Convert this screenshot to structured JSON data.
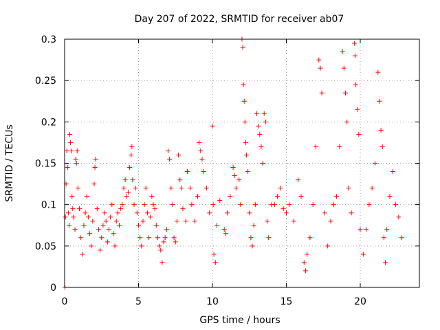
{
  "chart_data": {
    "type": "scatter",
    "title": "Day 207 of 2022, SRMTID for receiver ab07",
    "xlabel": "GPS time / hours",
    "ylabel": "SRMTID / TECUs",
    "xlim": [
      0,
      24
    ],
    "ylim": [
      0,
      0.3
    ],
    "xticks": [
      0,
      5,
      10,
      15,
      20
    ],
    "xtick_labels": [
      "0",
      "5",
      "10",
      "15",
      "20"
    ],
    "yticks": [
      0,
      0.05,
      0.1,
      0.15,
      0.2,
      0.25,
      0.3
    ],
    "ytick_labels": [
      "0",
      "0.05",
      "0.1",
      "0.15",
      "0.2",
      "0.25",
      "0.3"
    ],
    "grid": true,
    "marker": "+",
    "series_color": "#ff0000",
    "series": [
      {
        "name": "ab07",
        "points": [
          [
            0.02,
            0.0
          ],
          [
            0.05,
            0.085
          ],
          [
            0.1,
            0.125
          ],
          [
            0.15,
            0.165
          ],
          [
            0.2,
            0.145
          ],
          [
            0.25,
            0.09
          ],
          [
            0.3,
            0.075
          ],
          [
            0.35,
            0.185
          ],
          [
            0.4,
            0.175
          ],
          [
            0.45,
            0.165
          ],
          [
            0.5,
            0.11
          ],
          [
            0.55,
            0.095
          ],
          [
            0.6,
            0.085
          ],
          [
            0.7,
            0.07
          ],
          [
            0.75,
            0.155
          ],
          [
            0.8,
            0.15
          ],
          [
            0.85,
            0.165
          ],
          [
            0.9,
            0.12
          ],
          [
            1.0,
            0.095
          ],
          [
            1.1,
            0.06
          ],
          [
            1.2,
            0.04
          ],
          [
            1.3,
            0.075
          ],
          [
            1.4,
            0.09
          ],
          [
            1.5,
            0.11
          ],
          [
            1.6,
            0.085
          ],
          [
            1.7,
            0.065
          ],
          [
            1.8,
            0.05
          ],
          [
            1.9,
            0.08
          ],
          [
            2.0,
            0.125
          ],
          [
            2.05,
            0.145
          ],
          [
            2.1,
            0.155
          ],
          [
            2.2,
            0.095
          ],
          [
            2.3,
            0.07
          ],
          [
            2.4,
            0.045
          ],
          [
            2.5,
            0.06
          ],
          [
            2.6,
            0.075
          ],
          [
            2.7,
            0.09
          ],
          [
            2.8,
            0.08
          ],
          [
            2.9,
            0.055
          ],
          [
            3.0,
            0.07
          ],
          [
            3.1,
            0.085
          ],
          [
            3.2,
            0.1
          ],
          [
            3.3,
            0.065
          ],
          [
            3.4,
            0.05
          ],
          [
            3.5,
            0.08
          ],
          [
            3.6,
            0.09
          ],
          [
            3.7,
            0.075
          ],
          [
            3.8,
            0.095
          ],
          [
            3.9,
            0.1
          ],
          [
            4.0,
            0.12
          ],
          [
            4.1,
            0.13
          ],
          [
            4.2,
            0.11
          ],
          [
            4.3,
            0.115
          ],
          [
            4.4,
            0.145
          ],
          [
            4.5,
            0.16
          ],
          [
            4.55,
            0.17
          ],
          [
            4.6,
            0.13
          ],
          [
            4.7,
            0.1
          ],
          [
            4.8,
            0.12
          ],
          [
            4.9,
            0.09
          ],
          [
            5.0,
            0.075
          ],
          [
            5.1,
            0.06
          ],
          [
            5.2,
            0.05
          ],
          [
            5.3,
            0.08
          ],
          [
            5.4,
            0.1
          ],
          [
            5.5,
            0.12
          ],
          [
            5.6,
            0.09
          ],
          [
            5.7,
            0.06
          ],
          [
            5.8,
            0.085
          ],
          [
            5.9,
            0.11
          ],
          [
            6.0,
            0.1
          ],
          [
            6.1,
            0.095
          ],
          [
            6.2,
            0.075
          ],
          [
            6.3,
            0.06
          ],
          [
            6.4,
            0.05
          ],
          [
            6.5,
            0.045
          ],
          [
            6.6,
            0.03
          ],
          [
            6.7,
            0.055
          ],
          [
            6.8,
            0.06
          ],
          [
            6.9,
            0.07
          ],
          [
            7.0,
            0.165
          ],
          [
            7.1,
            0.155
          ],
          [
            7.2,
            0.12
          ],
          [
            7.3,
            0.1
          ],
          [
            7.4,
            0.06
          ],
          [
            7.5,
            0.055
          ],
          [
            7.6,
            0.08
          ],
          [
            7.7,
            0.16
          ],
          [
            7.8,
            0.13
          ],
          [
            7.9,
            0.12
          ],
          [
            8.0,
            0.095
          ],
          [
            8.2,
            0.08
          ],
          [
            8.3,
            0.14
          ],
          [
            8.5,
            0.12
          ],
          [
            8.6,
            0.1
          ],
          [
            8.8,
            0.08
          ],
          [
            9.0,
            0.11
          ],
          [
            9.1,
            0.175
          ],
          [
            9.2,
            0.165
          ],
          [
            9.3,
            0.155
          ],
          [
            9.4,
            0.14
          ],
          [
            9.6,
            0.12
          ],
          [
            9.8,
            0.09
          ],
          [
            10.0,
            0.195
          ],
          [
            10.05,
            0.1
          ],
          [
            10.1,
            0.04
          ],
          [
            10.2,
            0.03
          ],
          [
            10.3,
            0.075
          ],
          [
            10.5,
            0.105
          ],
          [
            10.8,
            0.07
          ],
          [
            10.9,
            0.065
          ],
          [
            11.0,
            0.09
          ],
          [
            11.2,
            0.11
          ],
          [
            11.4,
            0.145
          ],
          [
            11.5,
            0.135
          ],
          [
            11.6,
            0.12
          ],
          [
            11.8,
            0.13
          ],
          [
            11.9,
            0.1
          ],
          [
            12.0,
            0.3
          ],
          [
            12.05,
            0.29
          ],
          [
            12.1,
            0.245
          ],
          [
            12.15,
            0.225
          ],
          [
            12.2,
            0.2
          ],
          [
            12.25,
            0.175
          ],
          [
            12.3,
            0.16
          ],
          [
            12.4,
            0.14
          ],
          [
            12.5,
            0.09
          ],
          [
            12.6,
            0.06
          ],
          [
            12.7,
            0.05
          ],
          [
            12.8,
            0.075
          ],
          [
            12.9,
            0.1
          ],
          [
            13.0,
            0.21
          ],
          [
            13.1,
            0.195
          ],
          [
            13.2,
            0.185
          ],
          [
            13.3,
            0.17
          ],
          [
            13.4,
            0.15
          ],
          [
            13.5,
            0.21
          ],
          [
            13.6,
            0.2
          ],
          [
            13.7,
            0.08
          ],
          [
            13.8,
            0.06
          ],
          [
            14.0,
            0.1
          ],
          [
            14.2,
            0.1
          ],
          [
            14.4,
            0.11
          ],
          [
            14.6,
            0.12
          ],
          [
            14.8,
            0.095
          ],
          [
            15.0,
            0.09
          ],
          [
            15.2,
            0.1
          ],
          [
            15.5,
            0.08
          ],
          [
            15.8,
            0.13
          ],
          [
            16.0,
            0.11
          ],
          [
            16.2,
            0.03
          ],
          [
            16.3,
            0.02
          ],
          [
            16.4,
            0.04
          ],
          [
            16.6,
            0.06
          ],
          [
            16.8,
            0.1
          ],
          [
            17.0,
            0.17
          ],
          [
            17.2,
            0.275
          ],
          [
            17.3,
            0.265
          ],
          [
            17.4,
            0.235
          ],
          [
            17.6,
            0.09
          ],
          [
            17.8,
            0.05
          ],
          [
            18.0,
            0.08
          ],
          [
            18.2,
            0.1
          ],
          [
            18.4,
            0.11
          ],
          [
            18.6,
            0.17
          ],
          [
            18.8,
            0.285
          ],
          [
            18.9,
            0.265
          ],
          [
            19.0,
            0.235
          ],
          [
            19.1,
            0.2
          ],
          [
            19.2,
            0.12
          ],
          [
            19.4,
            0.09
          ],
          [
            19.6,
            0.295
          ],
          [
            19.65,
            0.28
          ],
          [
            19.7,
            0.245
          ],
          [
            19.8,
            0.215
          ],
          [
            19.9,
            0.185
          ],
          [
            20.0,
            0.07
          ],
          [
            20.2,
            0.04
          ],
          [
            20.4,
            0.07
          ],
          [
            20.6,
            0.1
          ],
          [
            20.8,
            0.12
          ],
          [
            21.0,
            0.15
          ],
          [
            21.2,
            0.26
          ],
          [
            21.3,
            0.225
          ],
          [
            21.4,
            0.19
          ],
          [
            21.5,
            0.17
          ],
          [
            21.6,
            0.06
          ],
          [
            21.7,
            0.03
          ],
          [
            21.8,
            0.07
          ],
          [
            22.0,
            0.11
          ],
          [
            22.2,
            0.14
          ],
          [
            22.4,
            0.1
          ],
          [
            22.6,
            0.085
          ],
          [
            22.8,
            0.06
          ]
        ]
      }
    ]
  }
}
